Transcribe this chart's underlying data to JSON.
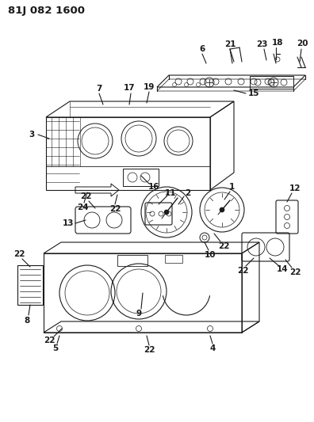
{
  "title": "81J 082 1600",
  "bg_color": "#ffffff",
  "line_color": "#1a1a1a",
  "title_fontsize": 9.5,
  "label_fontsize": 7.5,
  "figsize": [
    3.96,
    5.33
  ],
  "dpi": 100
}
